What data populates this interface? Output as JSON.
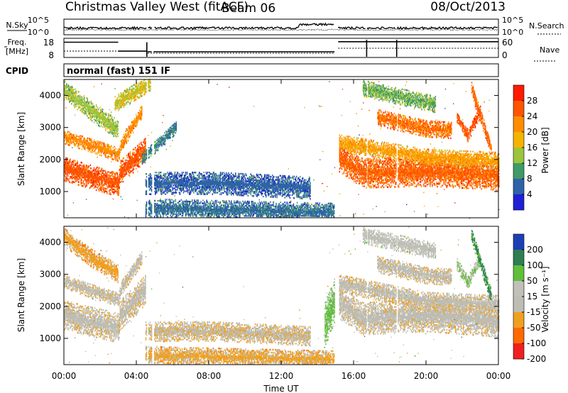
{
  "header": {
    "title": "Christmas Valley West (fitACF)",
    "beam": "Beam 06",
    "date": "08/Oct/2013"
  },
  "noise_panel": {
    "left_label": "N.Sky",
    "right_label": "N.Search",
    "left_ticks": [
      "10^5",
      "10^0"
    ],
    "right_ticks": [
      "10^5",
      "10^0"
    ]
  },
  "freq_panel": {
    "left_label_1": "Freq.",
    "left_label_2": "[MHz]",
    "right_label": "Nave",
    "left_ticks": [
      "18",
      "8"
    ],
    "right_ticks": [
      "60",
      "0"
    ]
  },
  "cpid": {
    "label": "CPID",
    "mode": "normal (fast) 151 IF"
  },
  "chart_data": [
    {
      "type": "heatmap",
      "panel": "power",
      "ylabel": "Slant Range [km]",
      "y_ticks": [
        1000,
        2000,
        3000,
        4000
      ],
      "ylim": [
        180,
        4500
      ],
      "xlim_hours": [
        0,
        24
      ],
      "colorbar": {
        "label": "Power [dB]",
        "ticks": [
          "28",
          "24",
          "20",
          "16",
          "12",
          "8",
          "4"
        ],
        "colors": [
          "#ff1a00",
          "#ff5500",
          "#ff8c00",
          "#f5b300",
          "#9cc43c",
          "#3f9a66",
          "#2e63a8",
          "#1f1fd6"
        ]
      },
      "bands": [
        {
          "t": [
            0,
            3,
            3.1,
            4.5
          ],
          "r": [
            1700,
            1200,
            1600,
            2300
          ],
          "w": 380,
          "level": 26
        },
        {
          "t": [
            0,
            3,
            3.2,
            4.3
          ],
          "r": [
            2700,
            2150,
            2500,
            3500
          ],
          "w": 220,
          "level": 22
        },
        {
          "t": [
            0,
            1.5,
            3
          ],
          "r": [
            4150,
            3500,
            2900
          ],
          "w": 300,
          "level": 14
        },
        {
          "t": [
            2.8,
            4.8
          ],
          "r": [
            3700,
            4400
          ],
          "w": 250,
          "level": 16
        },
        {
          "t": [
            4.3,
            6.2
          ],
          "r": [
            2000,
            3000
          ],
          "w": 200,
          "level": 8
        },
        {
          "t": [
            4.5,
            8.5,
            13.6
          ],
          "r": [
            1250,
            1250,
            1100
          ],
          "w": 350,
          "level": 6
        },
        {
          "t": [
            4.5,
            14.9
          ],
          "r": [
            460,
            320
          ],
          "w": 300,
          "level": 7
        },
        {
          "t": [
            15.2,
            16.5,
            20,
            23.5,
            24
          ],
          "r": [
            2050,
            1550,
            1600,
            1500,
            1450
          ],
          "w": 450,
          "level": 25
        },
        {
          "t": [
            15.2,
            20,
            24
          ],
          "r": [
            2500,
            2050,
            1950
          ],
          "w": 250,
          "level": 20
        },
        {
          "t": [
            17.3,
            20,
            21.4
          ],
          "r": [
            3300,
            2950,
            2900
          ],
          "w": 260,
          "level": 24
        },
        {
          "t": [
            21.7,
            22.3,
            23.0
          ],
          "r": [
            3300,
            2750,
            3500
          ],
          "w": 200,
          "level": 26
        },
        {
          "t": [
            22.5,
            23.6
          ],
          "r": [
            4200,
            2300
          ],
          "w": 220,
          "level": 25
        },
        {
          "t": [
            16.5,
            20.5
          ],
          "r": [
            4200,
            3700
          ],
          "w": 250,
          "level": 12
        }
      ]
    },
    {
      "type": "heatmap",
      "panel": "velocity",
      "ylabel": "Slant Range [km]",
      "xlabel": "Time UT",
      "x_ticks": [
        "00:00",
        "04:00",
        "08:00",
        "12:00",
        "16:00",
        "20:00",
        "00:00"
      ],
      "y_ticks": [
        1000,
        2000,
        3000,
        4000
      ],
      "ylim": [
        180,
        4500
      ],
      "xlim_hours": [
        0,
        24
      ],
      "colorbar": {
        "label": "Velocity [m s⁻¹]",
        "ticks": [
          "200",
          "100",
          "50",
          "15",
          "-15",
          "-50",
          "-100",
          "-200"
        ],
        "colors": [
          "#1d3fb6",
          "#2e7d53",
          "#5fbf3a",
          "#c0c0b8",
          "#bdbdb4",
          "#f0a020",
          "#ff6a00",
          "#f02020"
        ]
      },
      "bands": [
        {
          "t": [
            0,
            3,
            3.1,
            4.5
          ],
          "r": [
            1700,
            1300,
            1700,
            2500
          ],
          "w": 450,
          "level": 0
        },
        {
          "t": [
            0,
            3,
            3.2,
            4.3
          ],
          "r": [
            2750,
            2200,
            2600,
            3500
          ],
          "w": 220,
          "level": 0
        },
        {
          "t": [
            0,
            1.5,
            3
          ],
          "r": [
            4150,
            3500,
            3000
          ],
          "w": 280,
          "level": -30
        },
        {
          "t": [
            4.5,
            8.5,
            13.6
          ],
          "r": [
            1200,
            1200,
            1050
          ],
          "w": 300,
          "level": -8
        },
        {
          "t": [
            4.5,
            14.9
          ],
          "r": [
            460,
            320
          ],
          "w": 280,
          "level": -25
        },
        {
          "t": [
            14.4,
            15.0
          ],
          "r": [
            1400,
            2300
          ],
          "w": 700,
          "level": 60
        },
        {
          "t": [
            15.2,
            16.5,
            20,
            23.5,
            24
          ],
          "r": [
            2100,
            1600,
            1700,
            1550,
            1450
          ],
          "w": 500,
          "level": 0
        },
        {
          "t": [
            15.2,
            20,
            24
          ],
          "r": [
            2700,
            2150,
            2050
          ],
          "w": 280,
          "level": 0
        },
        {
          "t": [
            17.3,
            20,
            21.4
          ],
          "r": [
            3300,
            2950,
            2900
          ],
          "w": 260,
          "level": 0
        },
        {
          "t": [
            21.7,
            22.3,
            23.0
          ],
          "r": [
            3300,
            2750,
            3500
          ],
          "w": 200,
          "level": 45
        },
        {
          "t": [
            22.5,
            23.6
          ],
          "r": [
            4200,
            2300
          ],
          "w": 220,
          "level": 110
        },
        {
          "t": [
            16.5,
            20.5
          ],
          "r": [
            4200,
            3700
          ],
          "w": 250,
          "level": 20
        }
      ]
    }
  ]
}
